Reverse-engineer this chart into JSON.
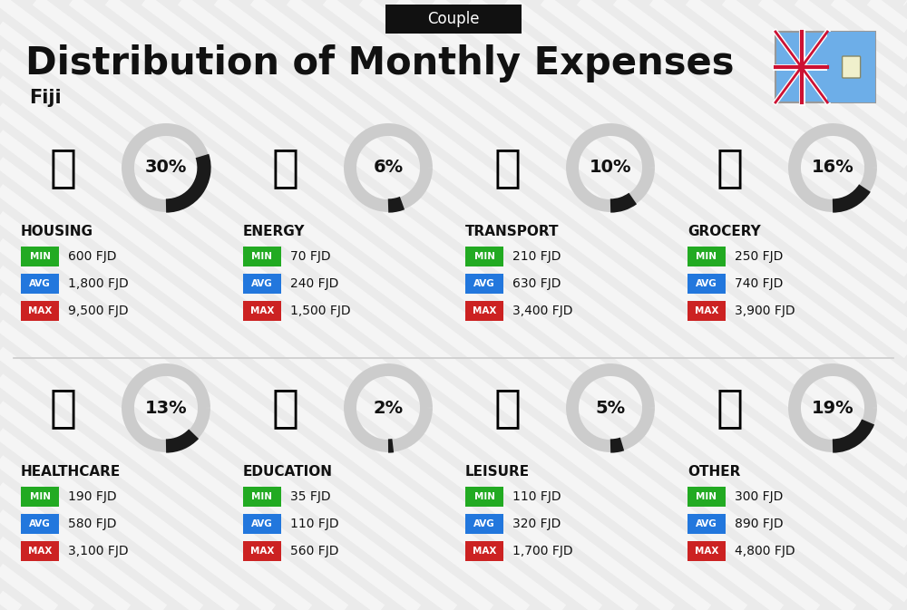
{
  "title": "Distribution of Monthly Expenses",
  "subtitle": "Couple",
  "country": "Fiji",
  "bg_color": "#ebebeb",
  "categories": [
    {
      "name": "HOUSING",
      "percent": 30,
      "min_val": "600 FJD",
      "avg_val": "1,800 FJD",
      "max_val": "9,500 FJD",
      "row": 0,
      "col": 0
    },
    {
      "name": "ENERGY",
      "percent": 6,
      "min_val": "70 FJD",
      "avg_val": "240 FJD",
      "max_val": "1,500 FJD",
      "row": 0,
      "col": 1
    },
    {
      "name": "TRANSPORT",
      "percent": 10,
      "min_val": "210 FJD",
      "avg_val": "630 FJD",
      "max_val": "3,400 FJD",
      "row": 0,
      "col": 2
    },
    {
      "name": "GROCERY",
      "percent": 16,
      "min_val": "250 FJD",
      "avg_val": "740 FJD",
      "max_val": "3,900 FJD",
      "row": 0,
      "col": 3
    },
    {
      "name": "HEALTHCARE",
      "percent": 13,
      "min_val": "190 FJD",
      "avg_val": "580 FJD",
      "max_val": "3,100 FJD",
      "row": 1,
      "col": 0
    },
    {
      "name": "EDUCATION",
      "percent": 2,
      "min_val": "35 FJD",
      "avg_val": "110 FJD",
      "max_val": "560 FJD",
      "row": 1,
      "col": 1
    },
    {
      "name": "LEISURE",
      "percent": 5,
      "min_val": "110 FJD",
      "avg_val": "320 FJD",
      "max_val": "1,700 FJD",
      "row": 1,
      "col": 2
    },
    {
      "name": "OTHER",
      "percent": 19,
      "min_val": "300 FJD",
      "avg_val": "890 FJD",
      "max_val": "4,800 FJD",
      "row": 1,
      "col": 3
    }
  ],
  "min_color": "#22aa22",
  "avg_color": "#2277dd",
  "max_color": "#cc2222",
  "label_color": "#ffffff",
  "title_color": "#111111",
  "percent_color": "#111111",
  "category_name_color": "#111111",
  "donut_fill_color": "#1a1a1a",
  "donut_bg_color": "#cccccc",
  "stripe_color": "#d8d8d8",
  "header_bg": "#111111",
  "header_fg": "#ffffff"
}
